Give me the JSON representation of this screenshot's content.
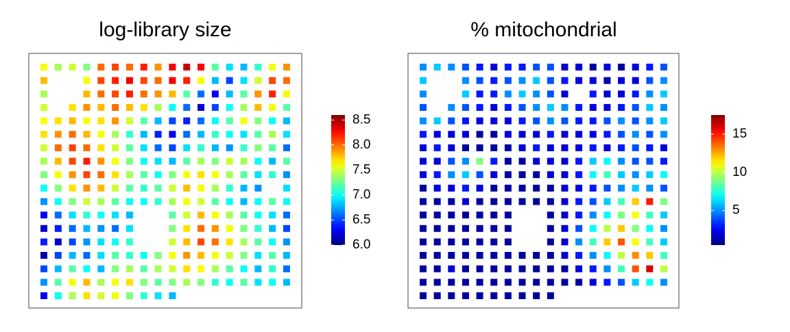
{
  "chart_data": [
    {
      "type": "spatial",
      "title": "log-library size",
      "colormap": "jet",
      "clim": [
        6.0,
        8.6
      ],
      "ticks": [
        {
          "value": 6,
          "label": "6.0"
        },
        6.5,
        {
          "value": 7,
          "label": "7.0"
        },
        7.5,
        {
          "value": 8,
          "label": "8.0"
        },
        8.5
      ],
      "rows": [
        [
          7.6,
          7.4,
          7.5,
          7.3,
          8.0,
          8.1,
          8.0,
          8.2,
          7.9,
          8.3,
          8.4,
          8.3,
          7.2,
          6.9,
          6.8,
          7.1,
          7.6,
          7.9
        ],
        [
          7.8,
          null,
          null,
          7.6,
          8.1,
          8.2,
          8.3,
          8.1,
          8.0,
          8.3,
          8.2,
          7.6,
          6.8,
          6.5,
          6.9,
          7.5,
          8.1,
          8.0
        ],
        [
          7.4,
          null,
          null,
          7.8,
          8.0,
          8.1,
          8.2,
          8.0,
          7.9,
          7.8,
          7.2,
          6.6,
          6.3,
          6.8,
          7.2,
          7.9,
          8.2,
          7.6
        ],
        [
          7.5,
          null,
          7.7,
          7.9,
          7.8,
          8.0,
          7.8,
          7.7,
          7.4,
          7.0,
          6.6,
          6.2,
          6.5,
          7.0,
          7.4,
          7.8,
          7.6,
          7.2
        ],
        [
          7.6,
          7.7,
          7.8,
          7.6,
          7.7,
          7.9,
          7.5,
          7.2,
          6.8,
          6.5,
          6.4,
          6.6,
          7.0,
          7.2,
          7.6,
          7.3,
          7.0,
          6.8
        ],
        [
          7.7,
          7.9,
          8.0,
          7.8,
          7.6,
          7.4,
          7.1,
          6.8,
          6.4,
          6.3,
          6.6,
          6.8,
          7.1,
          7.0,
          6.9,
          7.2,
          7.4,
          6.9
        ],
        [
          7.5,
          8.0,
          8.1,
          8.0,
          7.7,
          7.5,
          7.2,
          6.9,
          6.6,
          6.5,
          6.9,
          7.1,
          6.8,
          6.7,
          7.1,
          7.3,
          7.2,
          6.6
        ],
        [
          7.4,
          7.8,
          8.1,
          8.2,
          7.9,
          7.6,
          7.3,
          7.0,
          6.9,
          6.8,
          7.2,
          7.4,
          7.3,
          7.5,
          7.4,
          7.0,
          6.8,
          7.2
        ],
        [
          7.3,
          7.6,
          7.9,
          8.1,
          8.0,
          7.7,
          7.4,
          7.2,
          7.0,
          7.3,
          7.6,
          7.7,
          7.6,
          7.4,
          7.2,
          6.9,
          7.1,
          6.7
        ],
        [
          7.0,
          7.3,
          7.7,
          7.9,
          7.8,
          7.5,
          7.2,
          7.1,
          7.2,
          7.5,
          7.8,
          7.6,
          7.4,
          7.1,
          6.8,
          6.7,
          null,
          6.9
        ],
        [
          6.7,
          7.0,
          7.3,
          7.5,
          7.4,
          7.2,
          7.0,
          7.0,
          7.1,
          7.4,
          7.6,
          7.5,
          7.2,
          7.0,
          6.8,
          7.0,
          7.2,
          7.0
        ],
        [
          6.3,
          6.6,
          6.9,
          7.1,
          7.0,
          6.9,
          6.8,
          null,
          null,
          7.2,
          7.5,
          7.8,
          7.6,
          7.4,
          7.2,
          7.0,
          6.9,
          6.6
        ],
        [
          6.2,
          6.4,
          6.6,
          6.8,
          6.7,
          6.6,
          6.9,
          null,
          null,
          7.3,
          7.7,
          8.0,
          7.9,
          7.6,
          7.3,
          7.1,
          6.8,
          6.5
        ],
        [
          6.4,
          6.2,
          6.5,
          6.7,
          6.9,
          7.0,
          7.1,
          null,
          null,
          7.5,
          7.8,
          8.1,
          8.0,
          7.7,
          7.4,
          7.2,
          7.0,
          6.7
        ],
        [
          6.1,
          6.5,
          6.8,
          6.6,
          6.9,
          7.2,
          7.1,
          7.0,
          7.3,
          7.6,
          7.9,
          7.8,
          7.6,
          7.5,
          7.3,
          6.9,
          7.2,
          6.8
        ],
        [
          6.5,
          6.8,
          7.2,
          7.0,
          6.8,
          7.3,
          7.4,
          7.2,
          7.4,
          7.5,
          7.7,
          7.6,
          7.4,
          7.2,
          7.0,
          6.8,
          7.1,
          6.6
        ],
        [
          6.7,
          7.2,
          7.6,
          7.8,
          7.4,
          7.6,
          7.7,
          7.3,
          7.2,
          7.3,
          7.4,
          7.3,
          7.1,
          7.0,
          7.2,
          6.9,
          7.0,
          6.8
        ],
        [
          6.3,
          7.0,
          7.4,
          7.7,
          7.5,
          7.6,
          7.3,
          7.1,
          6.9,
          6.8,
          null,
          null,
          null,
          null,
          null,
          null,
          null,
          null
        ]
      ]
    },
    {
      "type": "spatial",
      "title": "% mitochondrial",
      "colormap": "jet",
      "clim": [
        0.5,
        17.5
      ],
      "ticks": [
        5,
        10,
        15
      ],
      "rows": [
        [
          5,
          6,
          5,
          4,
          3,
          2,
          3,
          3,
          4,
          4,
          2,
          2,
          1,
          2,
          1,
          2,
          3,
          4
        ],
        [
          6,
          null,
          null,
          5,
          4,
          3,
          4,
          5,
          6,
          4,
          3,
          2,
          2,
          1,
          2,
          2,
          4,
          5
        ],
        [
          5,
          null,
          null,
          6,
          3,
          3,
          5,
          6,
          5,
          4,
          2,
          null,
          3,
          2,
          2,
          3,
          5,
          6
        ],
        [
          4,
          null,
          5,
          4,
          3,
          2,
          3,
          4,
          5,
          6,
          5,
          3,
          2,
          2,
          3,
          4,
          6,
          5
        ],
        [
          5,
          6,
          4,
          3,
          2,
          2,
          2,
          3,
          4,
          5,
          4,
          3,
          3,
          4,
          5,
          4,
          5,
          6
        ],
        [
          3,
          2,
          2,
          2,
          1,
          1,
          2,
          2,
          2,
          3,
          2,
          2,
          2,
          3,
          4,
          5,
          4,
          5
        ],
        [
          2,
          3,
          2,
          1,
          1,
          1,
          1,
          2,
          3,
          2,
          2,
          2,
          3,
          2,
          3,
          4,
          3,
          2
        ],
        [
          2,
          2,
          4,
          5,
          9,
          3,
          1,
          1,
          2,
          2,
          2,
          3,
          6,
          7,
          5,
          4,
          4,
          3
        ],
        [
          2,
          3,
          5,
          6,
          4,
          2,
          1,
          1,
          1,
          2,
          2,
          3,
          7,
          8,
          6,
          5,
          6,
          7
        ],
        [
          1,
          2,
          2,
          3,
          2,
          1,
          1,
          1,
          1,
          1,
          2,
          2,
          3,
          4,
          5,
          6,
          5,
          4
        ],
        [
          1,
          1,
          1,
          2,
          1,
          1,
          1,
          1,
          1,
          1,
          2,
          3,
          4,
          6,
          8,
          12,
          15,
          9
        ],
        [
          1,
          1,
          1,
          1,
          1,
          1,
          1,
          null,
          null,
          1,
          2,
          3,
          5,
          7,
          9,
          11,
          8,
          6
        ],
        [
          1,
          1,
          1,
          1,
          1,
          1,
          1,
          null,
          null,
          1,
          2,
          4,
          7,
          10,
          12,
          9,
          7,
          5
        ],
        [
          1,
          1,
          1,
          1,
          1,
          1,
          1,
          null,
          null,
          1,
          2,
          5,
          8,
          12,
          14,
          11,
          8,
          6
        ],
        [
          1,
          1,
          1,
          1,
          1,
          1,
          1,
          1,
          1,
          1,
          2,
          3,
          5,
          7,
          10,
          13,
          12,
          8
        ],
        [
          1,
          1,
          2,
          1,
          1,
          1,
          1,
          1,
          1,
          1,
          1,
          2,
          3,
          5,
          8,
          14,
          16,
          10
        ],
        [
          1,
          1,
          1,
          1,
          1,
          1,
          1,
          1,
          1,
          1,
          1,
          1,
          2,
          3,
          4,
          6,
          7,
          5
        ],
        [
          1,
          1,
          1,
          1,
          1,
          1,
          1,
          1,
          1,
          1,
          null,
          null,
          null,
          null,
          null,
          null,
          null,
          null
        ]
      ]
    }
  ]
}
